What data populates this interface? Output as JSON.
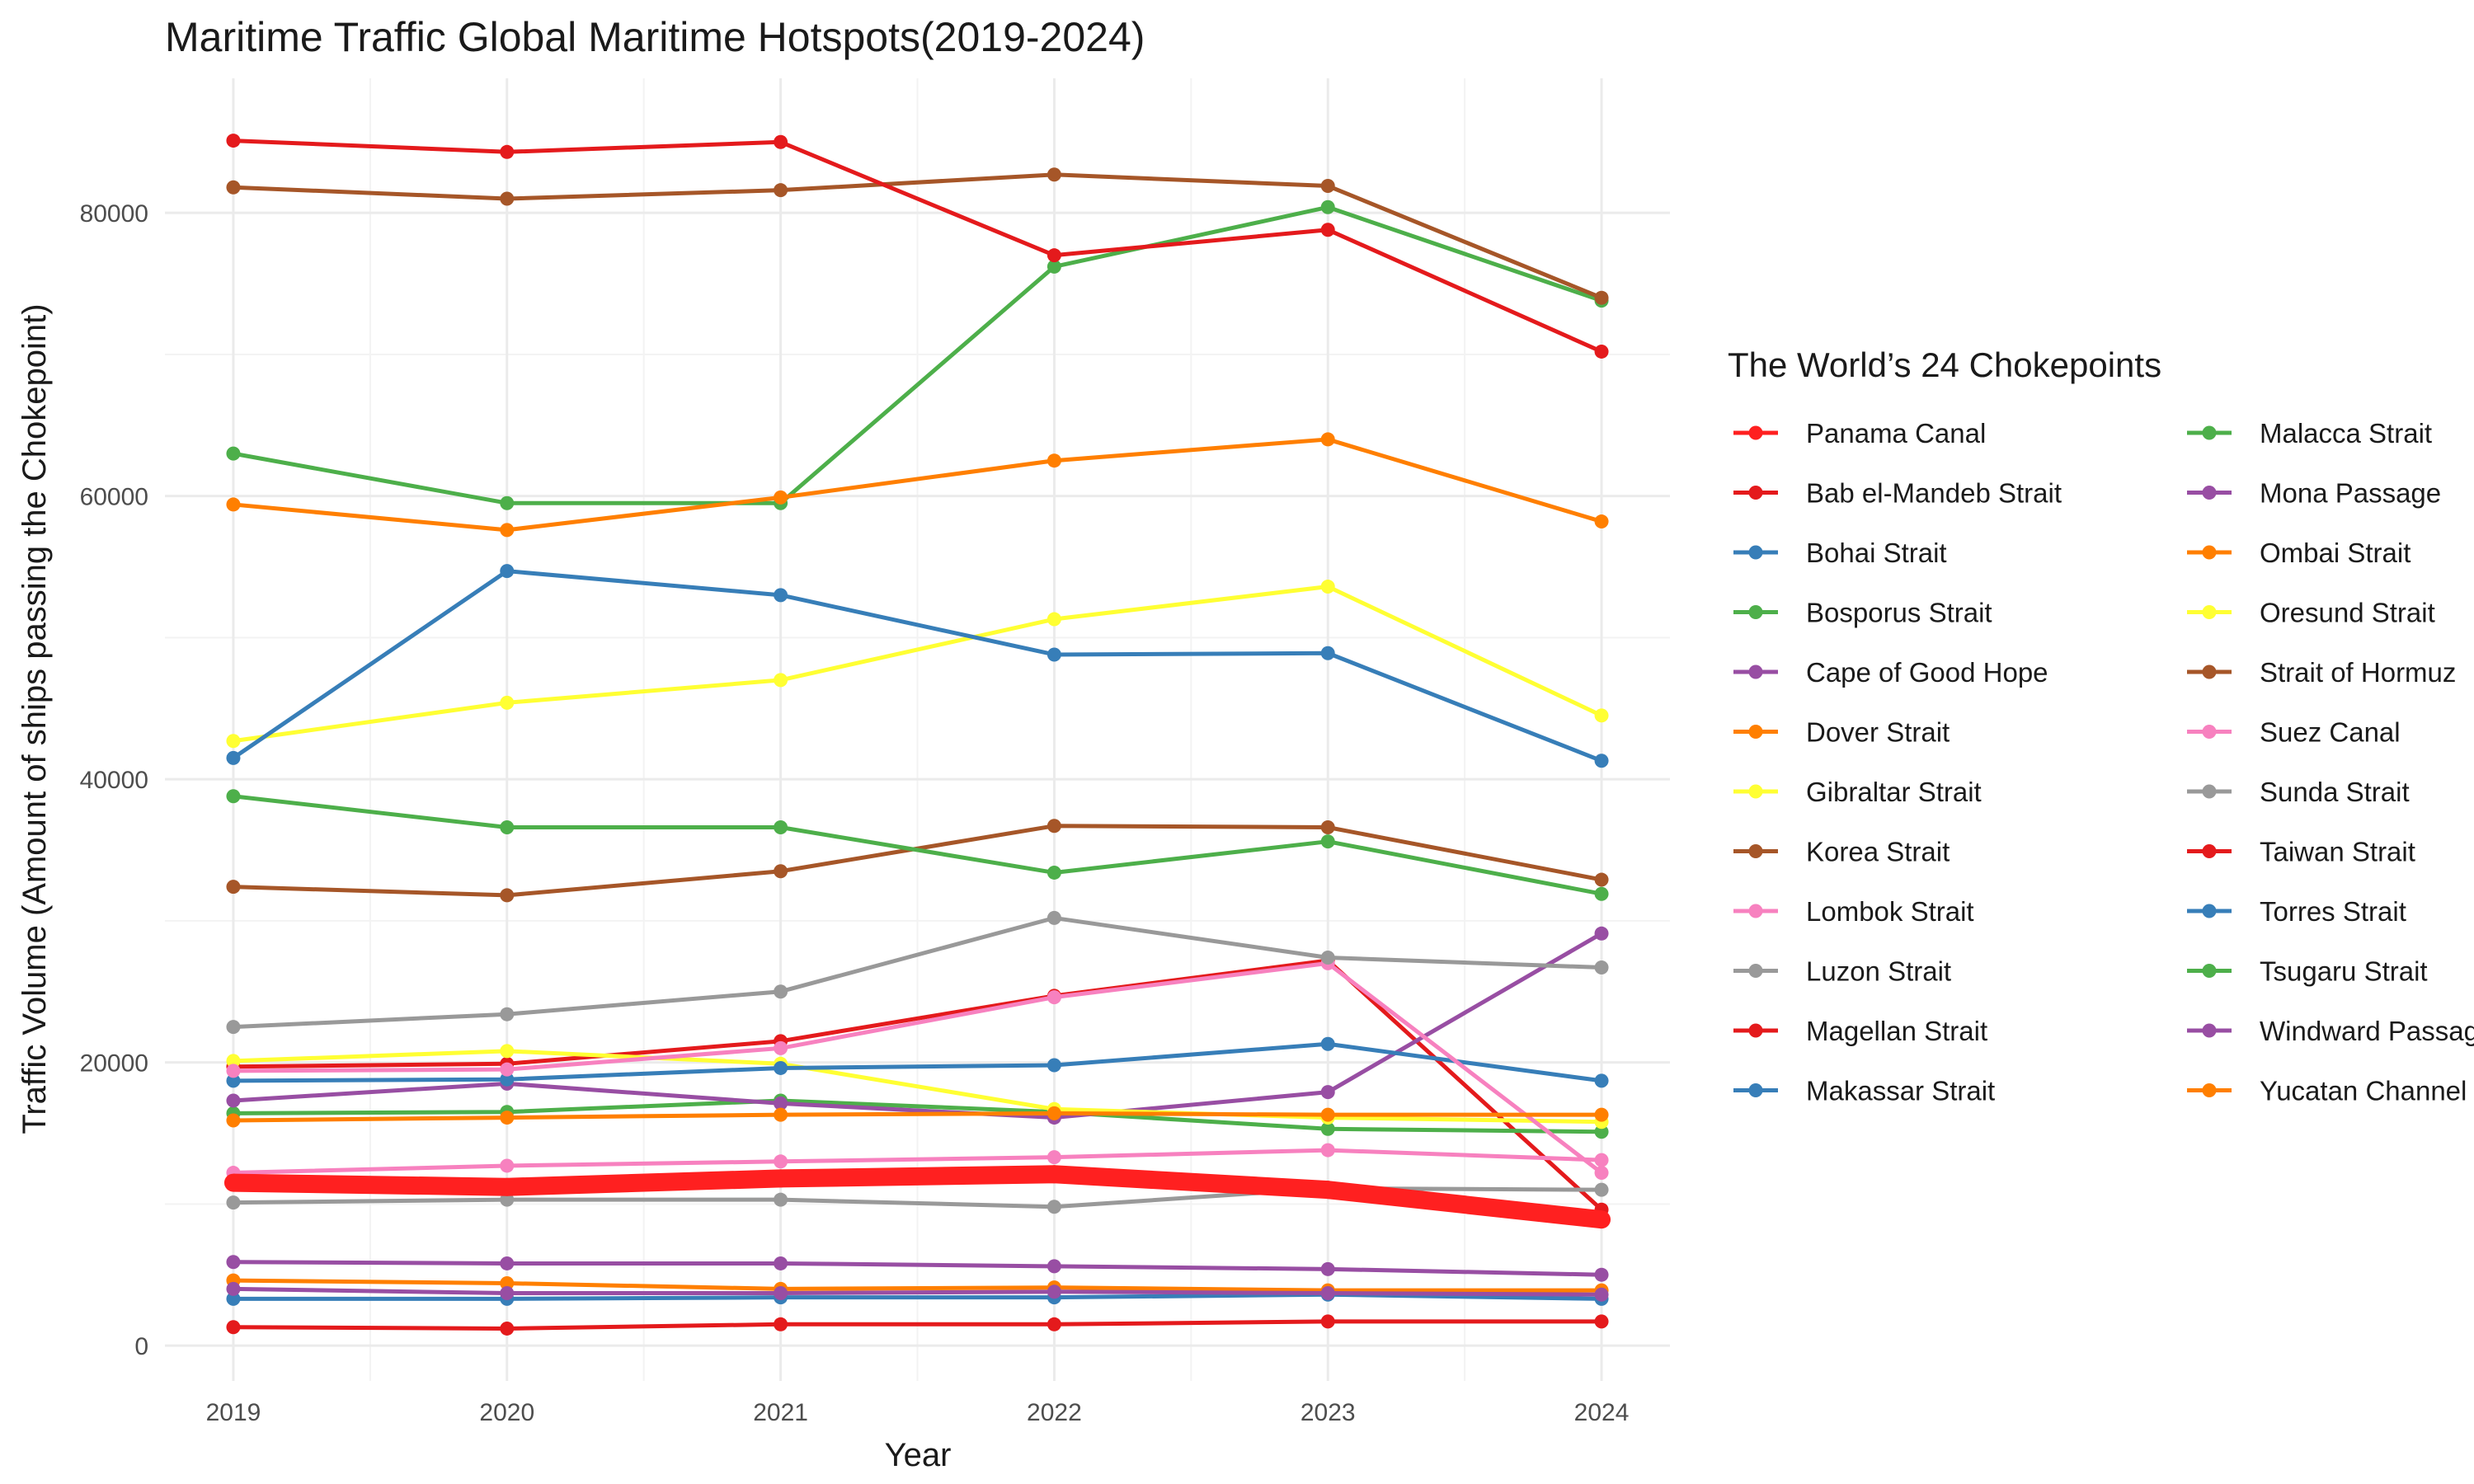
{
  "chart_data": {
    "type": "line",
    "title": "Maritime Traffic Global Maritime Hotspots(2019-2024)",
    "xlabel": "Year",
    "ylabel": "Traffic Volume (Amount of ships passing the Chokepoint)",
    "x": [
      2019,
      2020,
      2021,
      2022,
      2023,
      2024
    ],
    "xlim": [
      2018.75,
      2024.25
    ],
    "ylim": [
      -2500,
      89500
    ],
    "yticks": [
      0,
      20000,
      40000,
      60000,
      80000
    ],
    "ytick_labels": [
      "0",
      "20000",
      "40000",
      "60000",
      "80000"
    ],
    "xtick_labels": [
      "2019",
      "2020",
      "2021",
      "2022",
      "2023",
      "2024"
    ],
    "grid": true,
    "legend_title": "The World’s 24 Chokepoints",
    "legend_position": "right",
    "highlight_series": "Panama Canal",
    "series": [
      {
        "name": "Panama Canal",
        "color": "#FF2020",
        "values": [
          11500,
          11200,
          11800,
          12100,
          11000,
          8900
        ]
      },
      {
        "name": "Bab el-Mandeb Strait",
        "color": "#E41A1C",
        "values": [
          19700,
          19900,
          21500,
          24700,
          27200,
          9600
        ]
      },
      {
        "name": "Bohai Strait",
        "color": "#377EB8",
        "values": [
          3300,
          3300,
          3400,
          3400,
          3600,
          3300
        ]
      },
      {
        "name": "Bosporus Strait",
        "color": "#4DAF4A",
        "values": [
          16400,
          16500,
          17300,
          16500,
          15300,
          15100
        ]
      },
      {
        "name": "Cape of Good Hope",
        "color": "#984EA3",
        "values": [
          17300,
          18500,
          17100,
          16100,
          17900,
          29100
        ]
      },
      {
        "name": "Dover Strait",
        "color": "#FF7F00",
        "values": [
          4600,
          4400,
          4000,
          4100,
          3900,
          3900
        ]
      },
      {
        "name": "Gibraltar Strait",
        "color": "#FFFF33",
        "values": [
          20100,
          20800,
          19900,
          16700,
          16100,
          15800
        ]
      },
      {
        "name": "Korea Strait",
        "color": "#A65628",
        "values": [
          32400,
          31800,
          33500,
          36700,
          36600,
          32900
        ]
      },
      {
        "name": "Lombok Strait",
        "color": "#F781BF",
        "values": [
          12200,
          12700,
          13000,
          13300,
          13800,
          13100
        ]
      },
      {
        "name": "Luzon Strait",
        "color": "#999999",
        "values": [
          10100,
          10300,
          10300,
          9800,
          11100,
          11000
        ]
      },
      {
        "name": "Magellan Strait",
        "color": "#E41A1C",
        "values": [
          1300,
          1200,
          1500,
          1500,
          1700,
          1700
        ]
      },
      {
        "name": "Makassar Strait",
        "color": "#377EB8",
        "values": [
          18700,
          18800,
          19600,
          19800,
          21300,
          18700
        ]
      },
      {
        "name": "Malacca Strait",
        "color": "#4DAF4A",
        "values": [
          63000,
          59500,
          59500,
          76200,
          80400,
          73800
        ]
      },
      {
        "name": "Mona Passage",
        "color": "#984EA3",
        "values": [
          5900,
          5800,
          5800,
          5600,
          5400,
          5000
        ]
      },
      {
        "name": "Ombai Strait",
        "color": "#FF7F00",
        "values": [
          59400,
          57600,
          59900,
          62500,
          64000,
          58200
        ]
      },
      {
        "name": "Oresund Strait",
        "color": "#FFFF33",
        "values": [
          42700,
          45400,
          47000,
          51300,
          53600,
          44500
        ]
      },
      {
        "name": "Strait of Hormuz",
        "color": "#A65628",
        "values": [
          81800,
          81000,
          81600,
          82700,
          81900,
          74000
        ]
      },
      {
        "name": "Suez Canal",
        "color": "#F781BF",
        "values": [
          19400,
          19500,
          21000,
          24600,
          27000,
          12200
        ]
      },
      {
        "name": "Sunda Strait",
        "color": "#999999",
        "values": [
          22500,
          23400,
          25000,
          30200,
          27400,
          26700
        ]
      },
      {
        "name": "Taiwan Strait",
        "color": "#E41A1C",
        "values": [
          85100,
          84300,
          85000,
          77000,
          78800,
          70200
        ]
      },
      {
        "name": "Torres Strait",
        "color": "#377EB8",
        "values": [
          41500,
          54700,
          53000,
          48800,
          48900,
          41300
        ]
      },
      {
        "name": "Tsugaru Strait",
        "color": "#4DAF4A",
        "values": [
          38800,
          36600,
          36600,
          33400,
          35600,
          31900
        ]
      },
      {
        "name": "Windward Passage",
        "color": "#984EA3",
        "values": [
          4000,
          3700,
          3700,
          3800,
          3700,
          3600
        ]
      },
      {
        "name": "Yucatan Channel",
        "color": "#FF7F00",
        "values": [
          15900,
          16100,
          16300,
          16400,
          16300,
          16300
        ]
      }
    ]
  }
}
